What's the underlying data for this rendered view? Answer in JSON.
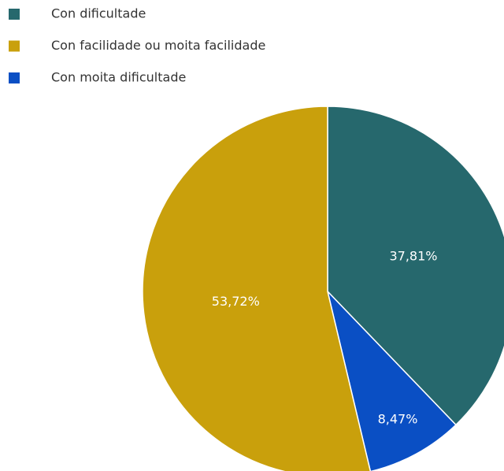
{
  "chart_data": {
    "type": "pie",
    "categories": [
      "Con dificultade",
      "Con facilidade ou moita facilidade",
      "Con moita dificultade"
    ],
    "values": [
      37.81,
      53.72,
      8.47
    ],
    "value_labels": [
      "37,81%",
      "53,72%",
      "8,47%"
    ],
    "colors": [
      "#26686d",
      "#c9a00c",
      "#0a4fc4"
    ]
  }
}
